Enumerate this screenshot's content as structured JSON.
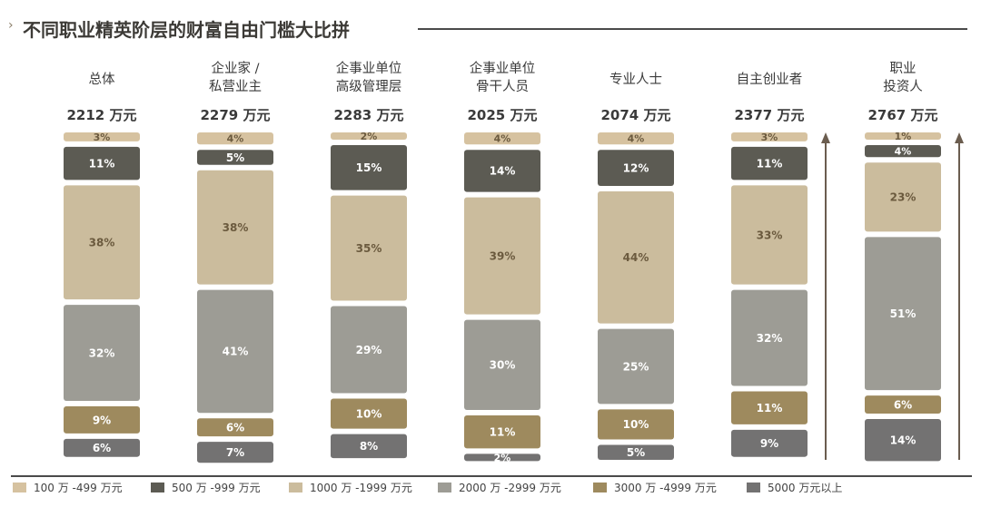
{
  "title": "不同职业精英阶层的财富自由门槛大比拼",
  "title_marker": "›",
  "colors": {
    "band_100_499": "#d6c2a0",
    "band_500_999": "#5c5b53",
    "band_1000_1999": "#cbbc9d",
    "band_2000_2999": "#9d9c95",
    "band_3000_4999": "#9e8a5e",
    "band_5000_plus": "#737272",
    "label_dark": "#ffffff",
    "label_light": "#6b5a3e",
    "arrow": "#6b5d4f"
  },
  "legend": [
    {
      "label": "100 万 -499 万元",
      "color": "#d6c2a0"
    },
    {
      "label": "500 万 -999 万元",
      "color": "#5c5b53"
    },
    {
      "label": "1000 万 -1999 万元",
      "color": "#cbbc9d"
    },
    {
      "label": "2000 万 -2999 万元",
      "color": "#9d9c95"
    },
    {
      "label": "3000 万 -4999 万元",
      "color": "#9e8a5e"
    },
    {
      "label": "5000 万元以上",
      "color": "#737272"
    }
  ],
  "chart_data": {
    "type": "bar",
    "stacked": true,
    "percent_stacked": true,
    "title": "不同职业精英阶层的财富自由门槛大比拼",
    "categories": [
      [
        "总体"
      ],
      [
        "企业家 /",
        "私营业主"
      ],
      [
        "企事业单位",
        "高级管理层"
      ],
      [
        "企事业单位",
        "骨干人员"
      ],
      [
        "专业人士"
      ],
      [
        "自主创业者"
      ],
      [
        "职业",
        "投资人"
      ]
    ],
    "thresholds": [
      "2212 万元",
      "2279 万元",
      "2283 万元",
      "2025 万元",
      "2074 万元",
      "2377 万元",
      "2767 万元"
    ],
    "series": [
      {
        "name": "100 万 -499 万元",
        "values": [
          3,
          4,
          2,
          4,
          4,
          3,
          1
        ]
      },
      {
        "name": "500 万 -999 万元",
        "values": [
          11,
          5,
          15,
          14,
          12,
          11,
          4
        ]
      },
      {
        "name": "1000 万 -1999 万元",
        "values": [
          38,
          38,
          35,
          39,
          44,
          33,
          23
        ]
      },
      {
        "name": "2000 万 -2999 万元",
        "values": [
          32,
          41,
          29,
          30,
          25,
          32,
          51
        ]
      },
      {
        "name": "3000 万 -4999 万元",
        "values": [
          9,
          6,
          10,
          11,
          10,
          11,
          6
        ]
      },
      {
        "name": "5000 万元以上",
        "values": [
          6,
          7,
          8,
          2,
          5,
          9,
          14
        ]
      }
    ],
    "value_suffix": "%",
    "upward_arrows_after_categories": [
      5,
      6
    ],
    "ylim": [
      0,
      100
    ],
    "grid": false,
    "legend_position": "bottom"
  }
}
